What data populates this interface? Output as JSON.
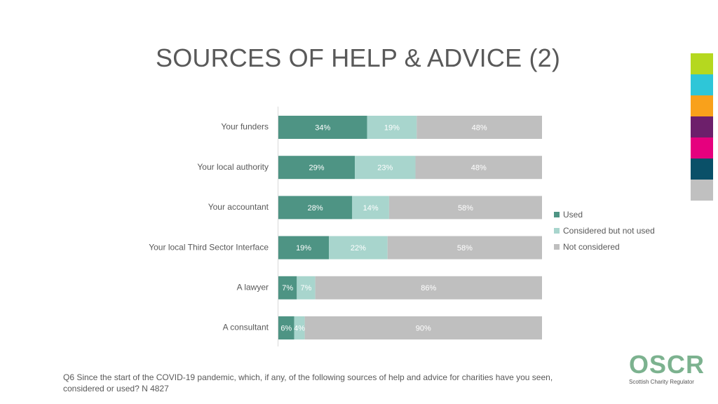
{
  "slide": {
    "title": "SOURCES OF HELP & ADVICE (2)",
    "footnote": "Q6 Since the start of the COVID-19 pandemic, which, if any, of the following sources of help and advice for charities have you seen, considered or used? N 4827"
  },
  "logo": {
    "word": "OSCR",
    "subtitle": "Scottish Charity Regulator"
  },
  "colors": {
    "used": "#4e9484",
    "considered": "#a8d5cd",
    "not_considered": "#bfbfbf",
    "swatches": [
      "#b5d81f",
      "#2ec6d8",
      "#f9a11b",
      "#6d1f6b",
      "#e6007e",
      "#0a5068",
      "#c0c0c0"
    ]
  },
  "chart_data": {
    "type": "bar",
    "orientation": "horizontal",
    "stacked": true,
    "title": "SOURCES OF HELP & ADVICE (2)",
    "categories": [
      "Your funders",
      "Your local authority",
      "Your accountant",
      "Your local Third Sector Interface",
      "A lawyer",
      "A consultant"
    ],
    "series": [
      {
        "name": "Used",
        "values": [
          34,
          29,
          28,
          19,
          7,
          6
        ]
      },
      {
        "name": "Considered but not used",
        "values": [
          19,
          23,
          14,
          22,
          7,
          4
        ]
      },
      {
        "name": "Not considered",
        "values": [
          48,
          48,
          58,
          58,
          86,
          90
        ]
      }
    ],
    "value_labels": [
      [
        "34%",
        "19%",
        "48%"
      ],
      [
        "29%",
        "23%",
        "48%"
      ],
      [
        "28%",
        "14%",
        "58%"
      ],
      [
        "19%",
        "22%",
        "58%"
      ],
      [
        "7%",
        "7%",
        "86%"
      ],
      [
        "6%",
        "4%",
        "90%"
      ]
    ],
    "xlim": [
      0,
      100
    ],
    "unit": "%",
    "legend_position": "right"
  }
}
